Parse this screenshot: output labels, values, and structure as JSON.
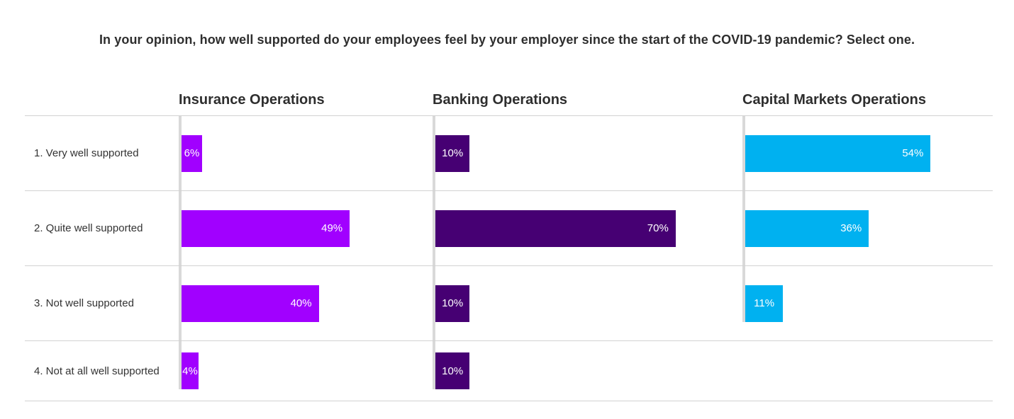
{
  "title": "In your opinion, how well supported do your employees feel by your employer since the start of the COVID-19 pandemic? Select one.",
  "chart_data": {
    "type": "bar",
    "orientation": "horizontal",
    "categories": [
      "1. Very well supported",
      "2. Quite well supported",
      "3. Not well supported",
      "4. Not at all well supported"
    ],
    "series": [
      {
        "name": "Insurance Operations",
        "color": "#A100FF",
        "values": [
          6,
          49,
          40,
          4
        ]
      },
      {
        "name": "Banking Operations",
        "color": "#460073",
        "values": [
          10,
          70,
          10,
          10
        ]
      },
      {
        "name": "Capital Markets Operations",
        "color": "#00B1F0",
        "values": [
          54,
          36,
          11,
          null
        ]
      }
    ],
    "value_suffix": "%",
    "xlim": [
      0,
      100
    ],
    "grid": "horizontal-row-separators",
    "legend": "column-headers-top"
  },
  "styles": {
    "axis_line_color": "#D9D9D9",
    "grid_line_color": "#D2D2D2",
    "heading_text_color": "#2E2E2E",
    "label_text_color": "#333333",
    "bar_label_color": "#FFFFFF",
    "background": "#FFFFFF"
  }
}
